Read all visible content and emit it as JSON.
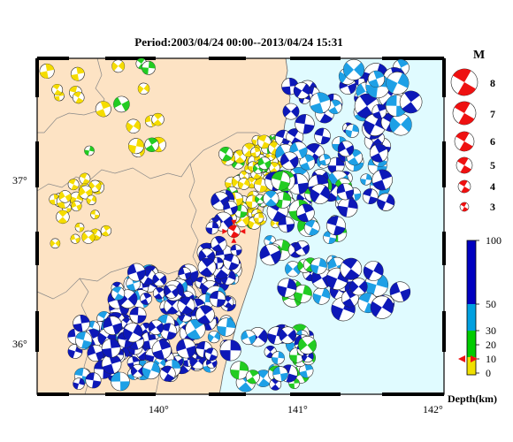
{
  "title": "Period:2003/04/24 00:00--2013/04/24 15:31",
  "lon_ticks": [
    "140°",
    "141°",
    "142°"
  ],
  "lat_ticks": [
    "37°",
    "36°"
  ],
  "magnitude_legend": {
    "heading": "M",
    "items": [
      "8",
      "7",
      "6",
      "5",
      "4",
      "3"
    ]
  },
  "depth_colorbar": {
    "title": "Depth(km)",
    "ticks": [
      "100",
      "50",
      "30",
      "20",
      "10",
      "0"
    ],
    "colors": [
      "#f0e000",
      "#00cc00",
      "#00a0e0",
      "#0000c0"
    ]
  },
  "colors": {
    "land": "#fde3c4",
    "sea": "#e0fbff",
    "shallow": "#f5dc00",
    "mid_shallow": "#22cc22",
    "mid": "#1ea0e6",
    "deep": "#0d18b8",
    "mainshock": "#ee1111"
  },
  "map": {
    "lon_range": [
      139.1,
      142.1
    ],
    "lat_range": [
      35.75,
      37.75
    ],
    "mainshock": {
      "lon": 140.55,
      "lat": 36.72,
      "label": "mainshock-marker"
    }
  }
}
